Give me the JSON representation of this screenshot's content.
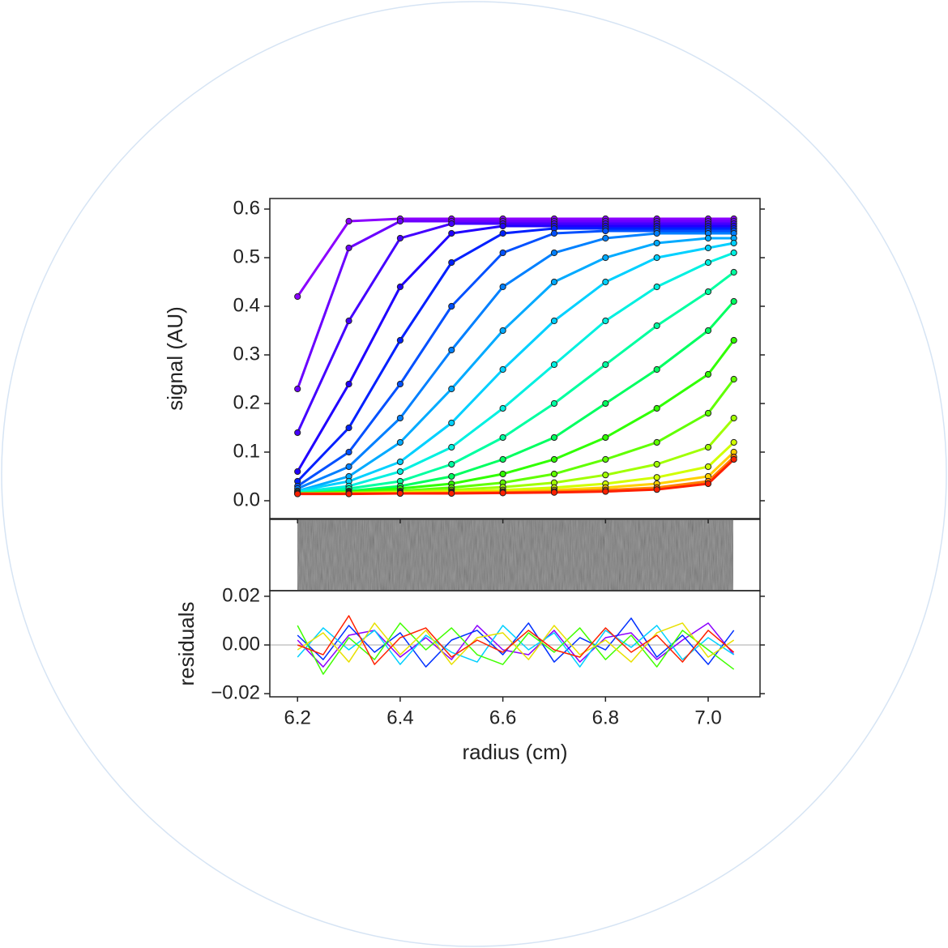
{
  "chart_data": [
    {
      "type": "line",
      "ylabel": "signal (AU)",
      "x": [
        6.2,
        6.3,
        6.4,
        6.5,
        6.6,
        6.7,
        6.8,
        6.9,
        7.0,
        7.05
      ],
      "xlim": [
        6.146,
        7.101
      ],
      "xticks": [
        6.2,
        6.4,
        6.6,
        6.8,
        {
          "value": 7.0,
          "label": "7.0"
        }
      ],
      "ylim": [
        -0.0367,
        0.6217
      ],
      "yticks": [
        {
          "value": 0,
          "label": "0.0"
        },
        0.1,
        0.2,
        0.3,
        0.4,
        0.5,
        0.6
      ],
      "markers": true,
      "series": [
        {
          "color": "#8b00ff",
          "values": [
            0.42,
            0.575,
            0.58,
            0.58,
            0.58,
            0.58,
            0.58,
            0.58,
            0.58,
            0.58
          ]
        },
        {
          "color": "#6a00ff",
          "values": [
            0.23,
            0.52,
            0.575,
            0.575,
            0.575,
            0.575,
            0.575,
            0.575,
            0.575,
            0.575
          ]
        },
        {
          "color": "#4400ff",
          "values": [
            0.14,
            0.37,
            0.54,
            0.57,
            0.57,
            0.57,
            0.57,
            0.57,
            0.57,
            0.57
          ]
        },
        {
          "color": "#2000ff",
          "values": [
            0.06,
            0.24,
            0.44,
            0.55,
            0.565,
            0.565,
            0.565,
            0.565,
            0.565,
            0.565
          ]
        },
        {
          "color": "#0020ff",
          "values": [
            0.04,
            0.15,
            0.33,
            0.49,
            0.55,
            0.56,
            0.56,
            0.56,
            0.56,
            0.56
          ]
        },
        {
          "color": "#0050ff",
          "values": [
            0.03,
            0.1,
            0.24,
            0.4,
            0.51,
            0.55,
            0.555,
            0.555,
            0.555,
            0.555
          ]
        },
        {
          "color": "#0080ff",
          "values": [
            0.025,
            0.07,
            0.17,
            0.31,
            0.44,
            0.51,
            0.54,
            0.55,
            0.55,
            0.55
          ]
        },
        {
          "color": "#00aaff",
          "values": [
            0.02,
            0.05,
            0.12,
            0.23,
            0.35,
            0.45,
            0.5,
            0.53,
            0.54,
            0.54
          ]
        },
        {
          "color": "#00d0ff",
          "values": [
            0.02,
            0.04,
            0.08,
            0.16,
            0.27,
            0.37,
            0.45,
            0.5,
            0.52,
            0.53
          ]
        },
        {
          "color": "#00f0e0",
          "values": [
            0.018,
            0.03,
            0.06,
            0.11,
            0.19,
            0.28,
            0.37,
            0.44,
            0.49,
            0.51
          ]
        },
        {
          "color": "#00ffa0",
          "values": [
            0.016,
            0.025,
            0.04,
            0.075,
            0.13,
            0.2,
            0.28,
            0.36,
            0.43,
            0.47
          ]
        },
        {
          "color": "#00ff60",
          "values": [
            0.015,
            0.02,
            0.03,
            0.05,
            0.085,
            0.13,
            0.2,
            0.27,
            0.35,
            0.41
          ]
        },
        {
          "color": "#30ff00",
          "values": [
            0.015,
            0.018,
            0.025,
            0.035,
            0.055,
            0.085,
            0.13,
            0.19,
            0.26,
            0.33
          ]
        },
        {
          "color": "#60ff00",
          "values": [
            0.015,
            0.017,
            0.02,
            0.027,
            0.037,
            0.055,
            0.085,
            0.12,
            0.18,
            0.25
          ]
        },
        {
          "color": "#a0ff00",
          "values": [
            0.015,
            0.016,
            0.018,
            0.022,
            0.028,
            0.037,
            0.053,
            0.075,
            0.11,
            0.17
          ]
        },
        {
          "color": "#d0ff00",
          "values": [
            0.015,
            0.015,
            0.017,
            0.019,
            0.022,
            0.027,
            0.035,
            0.048,
            0.07,
            0.12
          ]
        },
        {
          "color": "#ffd000",
          "values": [
            0.015,
            0.015,
            0.016,
            0.017,
            0.019,
            0.022,
            0.027,
            0.035,
            0.05,
            0.1
          ]
        },
        {
          "color": "#ff8000",
          "values": [
            0.015,
            0.015,
            0.015,
            0.016,
            0.017,
            0.019,
            0.022,
            0.027,
            0.04,
            0.09
          ]
        },
        {
          "color": "#ff2000",
          "values": [
            0.014,
            0.014,
            0.015,
            0.015,
            0.016,
            0.017,
            0.019,
            0.023,
            0.035,
            0.085
          ]
        }
      ]
    },
    {
      "type": "line",
      "ylabel": "residuals",
      "xlabel": "radius (cm)",
      "x": [
        6.2,
        6.25,
        6.3,
        6.35,
        6.4,
        6.45,
        6.5,
        6.55,
        6.6,
        6.65,
        6.7,
        6.75,
        6.8,
        6.85,
        6.9,
        6.95,
        7.0,
        7.05
      ],
      "xlim": [
        6.146,
        7.101
      ],
      "xticks": [
        6.2,
        6.4,
        6.6,
        6.8,
        {
          "value": 7.0,
          "label": "7.0"
        }
      ],
      "ylim": [
        -0.0213,
        0.0223
      ],
      "yticks": [
        {
          "value": -0.02,
          "label": "−0.02"
        },
        {
          "value": 0,
          "label": "0.00"
        },
        0.02
      ],
      "markers": false,
      "series": [
        {
          "color": "#8b00ff",
          "values": [
            0.002,
            -0.009,
            0.004,
            0.006,
            -0.005,
            0.003,
            -0.006,
            0.008,
            -0.002,
            -0.004,
            0.006,
            -0.007,
            0.003,
            0.005,
            -0.006,
            0.002,
            0.009,
            -0.004
          ]
        },
        {
          "color": "#0030ff",
          "values": [
            0.004,
            -0.006,
            0.008,
            -0.003,
            0.005,
            -0.009,
            0.002,
            0.006,
            -0.004,
            0.009,
            -0.007,
            0.003,
            -0.002,
            0.011,
            -0.005,
            0.004,
            -0.008,
            0.006
          ]
        },
        {
          "color": "#00d0ff",
          "values": [
            -0.005,
            0.007,
            -0.002,
            0.006,
            -0.008,
            0.004,
            -0.003,
            -0.007,
            0.008,
            -0.002,
            0.005,
            -0.009,
            0.006,
            -0.001,
            0.008,
            -0.006,
            0.003,
            -0.004
          ]
        },
        {
          "color": "#40ff00",
          "values": [
            0.008,
            -0.012,
            0.003,
            -0.006,
            0.009,
            -0.002,
            0.007,
            -0.004,
            -0.008,
            0.005,
            -0.003,
            0.007,
            -0.006,
            0.004,
            -0.009,
            0.006,
            -0.002,
            -0.01
          ]
        },
        {
          "color": "#e8e000",
          "values": [
            -0.002,
            0.005,
            -0.007,
            0.009,
            -0.004,
            0.006,
            -0.008,
            0.003,
            0.005,
            -0.006,
            0.008,
            -0.004,
            0.002,
            -0.007,
            0.005,
            0.009,
            -0.005,
            0.002
          ]
        },
        {
          "color": "#ff2000",
          "values": [
            0.0,
            -0.004,
            0.012,
            -0.008,
            0.003,
            0.007,
            -0.005,
            0.002,
            -0.003,
            0.006,
            -0.002,
            -0.005,
            0.007,
            -0.003,
            0.004,
            -0.007,
            0.006,
            -0.003
          ]
        }
      ]
    }
  ]
}
